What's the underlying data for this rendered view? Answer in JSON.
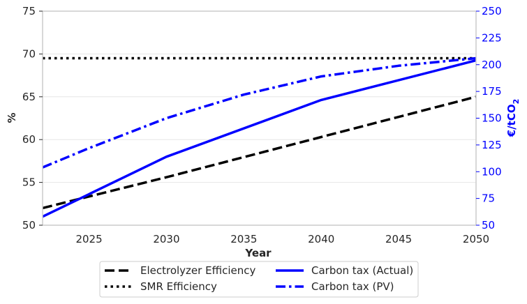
{
  "chart_data": {
    "type": "line",
    "xlabel": "Year",
    "ylabel_left": "%",
    "ylabel_right_main": "€/tCO",
    "ylabel_right_sub": "2",
    "xlim": [
      2022,
      2050
    ],
    "ylim_left": [
      50,
      75
    ],
    "ylim_right": [
      50,
      250
    ],
    "x_ticks": [
      2025,
      2030,
      2035,
      2040,
      2045,
      2050
    ],
    "y_ticks_left": [
      50,
      55,
      60,
      65,
      70,
      75
    ],
    "y_ticks_right": [
      50,
      75,
      100,
      125,
      150,
      175,
      200,
      225,
      250
    ],
    "grid": "horizontal",
    "legend_position": "bottom-center",
    "colors": {
      "black": "#000000",
      "blue": "#0000ff",
      "grid": "#e6e6e6",
      "spine": "#cccccc"
    },
    "series": [
      {
        "name": "Electrolyzer Efficiency",
        "axis": "left",
        "style": "dashed",
        "color": "#000000",
        "x": [
          2022,
          2030,
          2040,
          2050
        ],
        "y": [
          52.0,
          55.6,
          60.3,
          65.0
        ]
      },
      {
        "name": "SMR Efficiency",
        "axis": "left",
        "style": "dotted",
        "color": "#000000",
        "x": [
          2022,
          2050
        ],
        "y": [
          69.5,
          69.5
        ]
      },
      {
        "name": "Carbon tax (Actual)",
        "axis": "right",
        "style": "solid",
        "color": "#0000ff",
        "x": [
          2022,
          2030,
          2040,
          2050
        ],
        "y": [
          58,
          114,
          167,
          204
        ]
      },
      {
        "name": "Carbon tax (PV)",
        "axis": "right",
        "style": "dashdot",
        "color": "#0000ff",
        "x": [
          2022,
          2025,
          2030,
          2035,
          2040,
          2045,
          2050
        ],
        "y": [
          104,
          122,
          150,
          172,
          189,
          199,
          206
        ]
      }
    ]
  }
}
